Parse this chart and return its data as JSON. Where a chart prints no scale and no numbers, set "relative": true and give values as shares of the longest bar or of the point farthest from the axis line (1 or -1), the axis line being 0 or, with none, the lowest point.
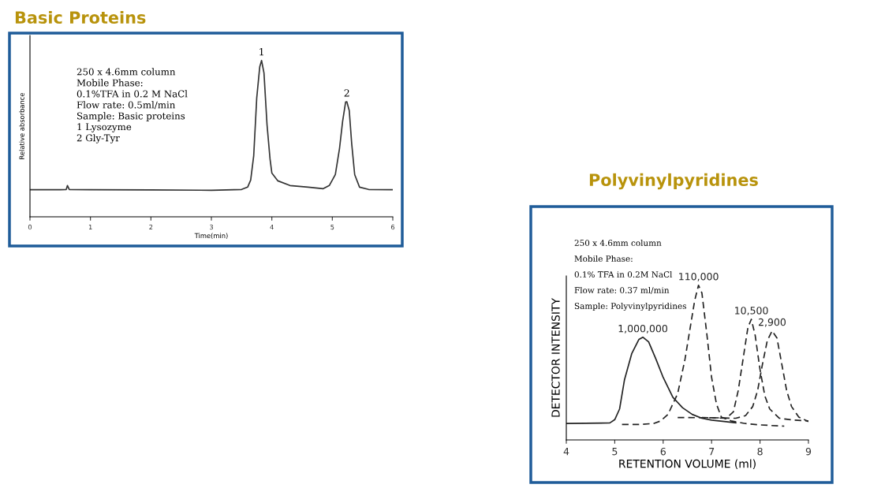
{
  "chart_data": [
    {
      "type": "line",
      "title": "Basic Proteins",
      "xlabel": "Time(min)",
      "ylabel": "Relative absorbance",
      "relative": true,
      "xlim": [
        0,
        6
      ],
      "xticks": [
        0,
        1,
        2,
        3,
        4,
        5,
        6
      ],
      "grid": false,
      "legend": false,
      "marker": "none",
      "annotations": [
        "250 x 4.6mm column",
        "Mobile Phase:",
        "0.1%TFA in 0.2 M NaCl",
        "Flow rate: 0.5ml/min",
        "Sample: Basic proteins",
        "1 Lysozyme",
        "2 Gly-Tyr",
        {
          "text": "1",
          "x": 3.83,
          "y": 1
        },
        {
          "text": "2",
          "x": 5.24,
          "y": 0.736
        }
      ],
      "series": [
        {
          "color": "#333333",
          "line_style": "solid",
          "x": [
            0,
            0.5,
            0.6,
            0.62,
            0.65,
            1.0,
            2,
            3,
            3.5,
            3.6,
            3.65,
            3.7,
            3.75,
            3.8,
            3.83,
            3.87,
            3.92,
            3.97,
            4.0,
            4.1,
            4.3,
            4.6,
            4.85,
            4.95,
            5.05,
            5.12,
            5.17,
            5.22,
            5.24,
            5.28,
            5.32,
            5.37,
            5.45,
            5.6,
            6.0
          ],
          "values": [
            0.173,
            0.173,
            0.175,
            0.2,
            0.175,
            0.173,
            0.172,
            0.17,
            0.175,
            0.19,
            0.235,
            0.39,
            0.76,
            0.96,
            1.0,
            0.92,
            0.59,
            0.37,
            0.28,
            0.23,
            0.2,
            0.19,
            0.18,
            0.2,
            0.27,
            0.44,
            0.61,
            0.735,
            0.736,
            0.68,
            0.47,
            0.27,
            0.19,
            0.175,
            0.173
          ]
        }
      ]
    },
    {
      "type": "line",
      "title": "Polyvinylpyridines",
      "xlabel": "RETENTION VOLUME (ml)",
      "ylabel": "DETECTOR INTENSITY",
      "relative": true,
      "xlim": [
        4,
        9
      ],
      "xticks": [
        4,
        5,
        6,
        7,
        8,
        9
      ],
      "grid": false,
      "legend": false,
      "marker": "none",
      "annotations": [
        "250 x 4.6mm column",
        "Mobile Phase:",
        "0.1% TFA in 0.2M NaCl",
        "Flow rate: 0.37 ml/min",
        "Sample: Polyvinylpyridines"
      ],
      "series": [
        {
          "name": "1,000,000",
          "color": "#222222",
          "line_style": "solid",
          "x": [
            4,
            4.9,
            5.0,
            5.1,
            5.2,
            5.35,
            5.5,
            5.58,
            5.7,
            5.85,
            6.0,
            6.2,
            6.4,
            6.6,
            6.8,
            7.0,
            7.3,
            7.5
          ],
          "values": [
            0.106,
            0.11,
            0.131,
            0.2,
            0.387,
            0.557,
            0.65,
            0.664,
            0.634,
            0.523,
            0.404,
            0.276,
            0.208,
            0.165,
            0.14,
            0.128,
            0.118,
            0.111
          ]
        },
        {
          "name": "110,000",
          "color": "#222222",
          "line_style": "dashed",
          "x": [
            5.15,
            5.5,
            5.8,
            5.95,
            6.1,
            6.3,
            6.45,
            6.55,
            6.65,
            6.73,
            6.8,
            6.9,
            7.0,
            7.1,
            7.2,
            7.4,
            7.7,
            8.0,
            8.5
          ],
          "values": [
            0.1,
            0.1,
            0.106,
            0.123,
            0.165,
            0.3,
            0.52,
            0.71,
            0.9,
            1.0,
            0.95,
            0.69,
            0.404,
            0.233,
            0.148,
            0.123,
            0.106,
            0.097,
            0.089
          ]
        },
        {
          "name": "10,500",
          "color": "#222222",
          "line_style": "dashed",
          "x": [
            6.3,
            7.0,
            7.3,
            7.45,
            7.55,
            7.65,
            7.75,
            7.82,
            7.9,
            8.0,
            8.1,
            8.2,
            8.4,
            8.7,
            9.0
          ],
          "values": [
            0.145,
            0.143,
            0.14,
            0.182,
            0.319,
            0.523,
            0.727,
            0.78,
            0.676,
            0.455,
            0.284,
            0.2,
            0.14,
            0.128,
            0.123
          ]
        },
        {
          "name": "2,900",
          "color": "#222222",
          "line_style": "dashed",
          "x": [
            6.8,
            7.5,
            7.7,
            7.85,
            7.95,
            8.05,
            8.15,
            8.25,
            8.35,
            8.45,
            8.55,
            8.65,
            8.8,
            9.0
          ],
          "values": [
            0.145,
            0.14,
            0.157,
            0.216,
            0.319,
            0.489,
            0.642,
            0.705,
            0.659,
            0.489,
            0.319,
            0.216,
            0.148,
            0.118
          ]
        }
      ]
    }
  ]
}
